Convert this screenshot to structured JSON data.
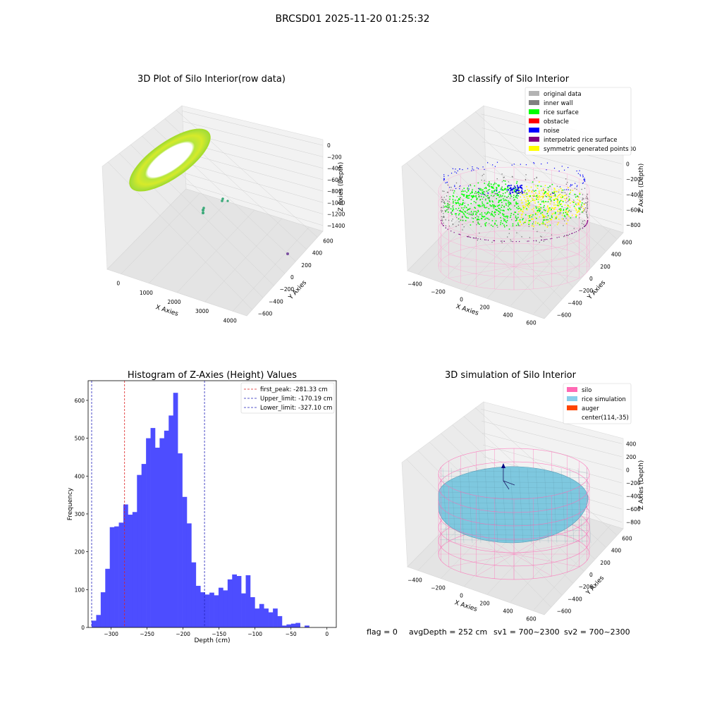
{
  "suptitle": "BRCSD01 2025-11-20 01:25:32",
  "footer": {
    "flag": "flag = 0",
    "avg": "avgDepth = 252 cm",
    "sv1": "sv1 = 700~2300",
    "sv2": "sv2 = 700~2300"
  },
  "colors": {
    "hist_bar": "#4d4dff",
    "first_peak": "#dd2222",
    "limit_line": "#2222bb",
    "silo_wire": "#ff69b4",
    "rice_surface_fill": "#7ec8df",
    "pane": "#f2f2f2"
  },
  "panels": {
    "raw": {
      "title": "3D Plot of Silo Interior(row data)",
      "xlabel": "X Axies",
      "ylabel": "Y Axies",
      "zlabel": "Z Axies (Depth)",
      "xticks": [
        "0",
        "1000",
        "2000",
        "3000",
        "4000"
      ],
      "yticks": [
        "600",
        "400",
        "200",
        "0",
        "−200",
        "−400",
        "−600"
      ],
      "zticks": [
        "0",
        "−200",
        "−400",
        "−600",
        "−800",
        "−1000",
        "−1200",
        "−1400"
      ]
    },
    "classify": {
      "title": "3D classify of Silo Interior",
      "xlabel": "X Axies",
      "ylabel": "Y Axies",
      "zlabel": "Z Axies (Depth)",
      "xticks": [
        "−400",
        "−200",
        "0",
        "200",
        "400",
        "600"
      ],
      "yticks": [
        "600",
        "400",
        "200",
        "0",
        "−200",
        "−400",
        "−600"
      ],
      "zticks": [
        "200",
        "0",
        "−200",
        "−400",
        "−600",
        "−800"
      ],
      "legend": [
        {
          "label": "original data",
          "color": "#b3b3b3"
        },
        {
          "label": "inner wall",
          "color": "#808080"
        },
        {
          "label": "rice surface",
          "color": "#00ff00"
        },
        {
          "label": "obstacle",
          "color": "#ff0000"
        },
        {
          "label": "noise",
          "color": "#0000ff"
        },
        {
          "label": "interpolated rice surface",
          "color": "#800080"
        },
        {
          "label": "symmetric generated points",
          "color": "#ffff00"
        }
      ]
    },
    "simulation": {
      "title": "3D simulation of Silo Interior",
      "xlabel": "X Axies",
      "ylabel": "Y Axies",
      "zlabel": "Z Axies (Depth)",
      "xticks": [
        "−400",
        "−200",
        "0",
        "200",
        "400",
        "600"
      ],
      "yticks": [
        "600",
        "400",
        "200",
        "0",
        "−200",
        "−400",
        "−600"
      ],
      "zticks": [
        "400",
        "200",
        "0",
        "−200",
        "−400",
        "−600",
        "−800"
      ],
      "legend": [
        {
          "label": "silo",
          "color": "#ff69b4"
        },
        {
          "label": "rice simulation",
          "color": "#87ceeb"
        },
        {
          "label": "auger",
          "color": "#ff4500"
        },
        {
          "label": "center(114,-35)",
          "color": ""
        }
      ]
    }
  },
  "chart_data": [
    {
      "type": "bar",
      "title": "Histogram of Z-Axies (Height) Values",
      "xlabel": "Depth (cm)",
      "ylabel": "Frequency",
      "xlim": [
        -332,
        13
      ],
      "ylim": [
        0,
        652
      ],
      "xticks": [
        -300,
        -250,
        -200,
        -150,
        -100,
        -50,
        0
      ],
      "yticks": [
        0,
        100,
        200,
        300,
        400,
        500,
        600
      ],
      "bin_start": -327.1,
      "bin_width": 6.3,
      "values": [
        18,
        33,
        93,
        155,
        265,
        267,
        277,
        325,
        298,
        305,
        403,
        432,
        500,
        527,
        475,
        500,
        520,
        560,
        620,
        460,
        345,
        275,
        172,
        110,
        93,
        87,
        92,
        85,
        105,
        98,
        127,
        140,
        136,
        90,
        138,
        80,
        50,
        62,
        50,
        40,
        50,
        30,
        5,
        8,
        10,
        12,
        0,
        5
      ],
      "lines": [
        {
          "label": "first_peak: -281.33 cm",
          "x": -281.33,
          "color": "#dd2222"
        },
        {
          "label": "Upper_limit: -170.19 cm",
          "x": -170.19,
          "color": "#2222bb"
        },
        {
          "label": "Lower_limit: -327.10 cm",
          "x": -327.1,
          "color": "#2222bb"
        }
      ]
    }
  ]
}
